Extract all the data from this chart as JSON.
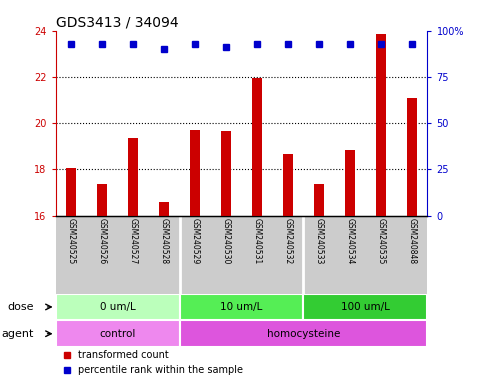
{
  "title": "GDS3413 / 34094",
  "samples": [
    "GSM240525",
    "GSM240526",
    "GSM240527",
    "GSM240528",
    "GSM240529",
    "GSM240530",
    "GSM240531",
    "GSM240532",
    "GSM240533",
    "GSM240534",
    "GSM240535",
    "GSM240848"
  ],
  "transformed_count": [
    18.05,
    17.35,
    19.35,
    16.6,
    19.7,
    19.65,
    21.95,
    18.65,
    17.35,
    18.85,
    23.85,
    21.1
  ],
  "percentile_rank": [
    93,
    93,
    93,
    90,
    93,
    91,
    93,
    93,
    93,
    93,
    93,
    93
  ],
  "ylim_left": [
    16,
    24
  ],
  "ylim_right": [
    0,
    100
  ],
  "yticks_left": [
    16,
    18,
    20,
    22,
    24
  ],
  "yticks_right": [
    0,
    25,
    50,
    75,
    100
  ],
  "bar_color": "#cc0000",
  "dot_color": "#0000cc",
  "dose_groups": [
    {
      "label": "0 um/L",
      "start": 0,
      "end": 4,
      "color": "#bbffbb"
    },
    {
      "label": "10 um/L",
      "start": 4,
      "end": 8,
      "color": "#55ee55"
    },
    {
      "label": "100 um/L",
      "start": 8,
      "end": 12,
      "color": "#33cc33"
    }
  ],
  "agent_groups": [
    {
      "label": "control",
      "start": 0,
      "end": 4,
      "color": "#ee88ee"
    },
    {
      "label": "homocysteine",
      "start": 4,
      "end": 12,
      "color": "#dd55dd"
    }
  ],
  "dose_label": "dose",
  "agent_label": "agent",
  "legend_bar": "transformed count",
  "legend_dot": "percentile rank within the sample",
  "grid_color": "#000000",
  "sample_bg_color": "#cccccc",
  "title_fontsize": 10,
  "tick_fontsize": 7,
  "axis_label_color_left": "#cc0000",
  "axis_label_color_right": "#0000cc"
}
